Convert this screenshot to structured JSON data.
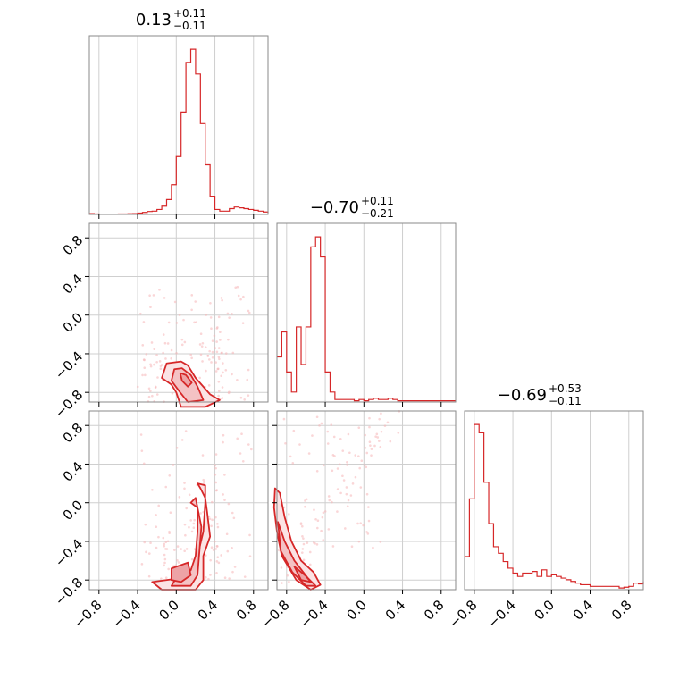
{
  "chart_data": {
    "type": "corner",
    "color": "#d62728",
    "fill_color": "#f4c2c4",
    "scatter_color": "#f5b5b7",
    "axis_range": [
      -0.9,
      0.95
    ],
    "ticks": [
      -0.8,
      -0.4,
      0.0,
      0.4,
      0.8
    ],
    "tick_labels": [
      "−0.8",
      "−0.4",
      "0.0",
      "0.4",
      "0.8"
    ],
    "grid": true,
    "parameters": [
      {
        "title_median": "0.13",
        "title_plus": "+0.11",
        "title_minus": "−0.11"
      },
      {
        "title_median": "−0.70",
        "title_plus": "+0.11",
        "title_minus": "−0.21"
      },
      {
        "title_median": "−0.69",
        "title_plus": "+0.53",
        "title_minus": "−0.11"
      }
    ],
    "histograms": [
      {
        "x": [
          -0.9,
          -0.85,
          -0.8,
          -0.75,
          -0.7,
          -0.65,
          -0.6,
          -0.55,
          -0.5,
          -0.45,
          -0.4,
          -0.35,
          -0.3,
          -0.25,
          -0.2,
          -0.15,
          -0.1,
          -0.05,
          0.0,
          0.05,
          0.1,
          0.15,
          0.2,
          0.25,
          0.3,
          0.35,
          0.4,
          0.45,
          0.5,
          0.55,
          0.6,
          0.65,
          0.7,
          0.75,
          0.8,
          0.85,
          0.9,
          0.95
        ],
        "y": [
          0.005,
          0.003,
          0.002,
          0.002,
          0.002,
          0.002,
          0.003,
          0.003,
          0.004,
          0.005,
          0.008,
          0.012,
          0.018,
          0.02,
          0.03,
          0.05,
          0.09,
          0.18,
          0.35,
          0.62,
          0.92,
          1.0,
          0.85,
          0.55,
          0.3,
          0.11,
          0.03,
          0.02,
          0.02,
          0.035,
          0.045,
          0.04,
          0.035,
          0.03,
          0.025,
          0.02,
          0.015,
          0.01
        ]
      },
      {
        "x": [
          -0.9,
          -0.85,
          -0.8,
          -0.75,
          -0.7,
          -0.65,
          -0.6,
          -0.55,
          -0.5,
          -0.45,
          -0.4,
          -0.35,
          -0.3,
          -0.25,
          -0.2,
          -0.15,
          -0.1,
          -0.05,
          0.0,
          0.05,
          0.1,
          0.15,
          0.2,
          0.25,
          0.3,
          0.35,
          0.4,
          0.45,
          0.5,
          0.55,
          0.6,
          0.65,
          0.7,
          0.75,
          0.8,
          0.85,
          0.9,
          0.95
        ],
        "y": [
          0.18,
          0.28,
          0.12,
          0.04,
          0.3,
          0.15,
          0.3,
          0.62,
          0.66,
          0.58,
          0.12,
          0.04,
          0.01,
          0.01,
          0.01,
          0.01,
          0.005,
          0.01,
          0.005,
          0.01,
          0.015,
          0.01,
          0.01,
          0.015,
          0.01,
          0.005,
          0.005,
          0.005,
          0.005,
          0.005,
          0.005,
          0.005,
          0.005,
          0.005,
          0.005,
          0.005,
          0.005,
          0.005
        ]
      },
      {
        "x": [
          -0.9,
          -0.85,
          -0.8,
          -0.75,
          -0.7,
          -0.65,
          -0.6,
          -0.55,
          -0.5,
          -0.45,
          -0.4,
          -0.35,
          -0.3,
          -0.25,
          -0.2,
          -0.15,
          -0.1,
          -0.05,
          0.0,
          0.05,
          0.1,
          0.15,
          0.2,
          0.25,
          0.3,
          0.35,
          0.4,
          0.45,
          0.5,
          0.55,
          0.6,
          0.65,
          0.7,
          0.75,
          0.8,
          0.85,
          0.9,
          0.95
        ],
        "y": [
          0.2,
          0.55,
          1.0,
          0.95,
          0.65,
          0.4,
          0.26,
          0.22,
          0.17,
          0.13,
          0.1,
          0.08,
          0.1,
          0.1,
          0.11,
          0.08,
          0.12,
          0.08,
          0.09,
          0.08,
          0.07,
          0.06,
          0.05,
          0.04,
          0.03,
          0.03,
          0.02,
          0.02,
          0.02,
          0.02,
          0.02,
          0.02,
          0.01,
          0.015,
          0.02,
          0.04,
          0.035,
          0.05
        ]
      }
    ],
    "contours": {
      "p1_p0": [
        {
          "level": "outer",
          "points": [
            [
              -0.1,
              -0.5
            ],
            [
              0.05,
              -0.48
            ],
            [
              0.12,
              -0.52
            ],
            [
              0.2,
              -0.65
            ],
            [
              0.35,
              -0.82
            ],
            [
              0.45,
              -0.88
            ],
            [
              0.3,
              -0.95
            ],
            [
              0.05,
              -0.95
            ],
            [
              0.0,
              -0.8
            ],
            [
              -0.05,
              -0.72
            ],
            [
              -0.15,
              -0.65
            ]
          ]
        },
        {
          "level": "middle",
          "points": [
            [
              -0.02,
              -0.56
            ],
            [
              0.06,
              -0.55
            ],
            [
              0.15,
              -0.62
            ],
            [
              0.22,
              -0.74
            ],
            [
              0.28,
              -0.88
            ],
            [
              0.12,
              -0.9
            ],
            [
              0.04,
              -0.8
            ],
            [
              -0.05,
              -0.68
            ]
          ]
        },
        {
          "level": "inner",
          "points": [
            [
              0.04,
              -0.6
            ],
            [
              0.1,
              -0.62
            ],
            [
              0.16,
              -0.7
            ],
            [
              0.12,
              -0.74
            ],
            [
              0.06,
              -0.68
            ]
          ]
        }
      ],
      "p2_p0": [
        {
          "level": "outer",
          "points": [
            [
              0.22,
              0.2
            ],
            [
              0.3,
              0.18
            ],
            [
              0.3,
              0.0
            ],
            [
              0.28,
              -0.3
            ],
            [
              0.22,
              -0.55
            ],
            [
              0.15,
              -0.7
            ],
            [
              0.05,
              -0.78
            ],
            [
              -0.25,
              -0.82
            ],
            [
              -0.15,
              -0.9
            ],
            [
              0.2,
              -0.9
            ],
            [
              0.28,
              -0.8
            ],
            [
              0.28,
              -0.55
            ],
            [
              0.35,
              -0.35
            ],
            [
              0.32,
              -0.1
            ],
            [
              0.3,
              0.05
            ],
            [
              0.25,
              0.15
            ]
          ]
        },
        {
          "level": "middle",
          "points": [
            [
              0.15,
              0.0
            ],
            [
              0.22,
              -0.05
            ],
            [
              0.22,
              -0.3
            ],
            [
              0.2,
              -0.55
            ],
            [
              0.15,
              -0.7
            ],
            [
              0.0,
              -0.78
            ],
            [
              -0.05,
              -0.86
            ],
            [
              0.15,
              -0.86
            ],
            [
              0.22,
              -0.75
            ],
            [
              0.24,
              -0.5
            ],
            [
              0.26,
              -0.25
            ],
            [
              0.2,
              0.05
            ]
          ]
        },
        {
          "level": "inner",
          "points": [
            [
              -0.05,
              -0.68
            ],
            [
              0.12,
              -0.62
            ],
            [
              0.15,
              -0.75
            ],
            [
              0.05,
              -0.82
            ],
            [
              -0.05,
              -0.8
            ]
          ]
        }
      ],
      "p2_p1": [
        {
          "level": "outer",
          "points": [
            [
              -0.92,
              0.15
            ],
            [
              -0.87,
              0.1
            ],
            [
              -0.82,
              -0.15
            ],
            [
              -0.75,
              -0.4
            ],
            [
              -0.65,
              -0.6
            ],
            [
              -0.52,
              -0.72
            ],
            [
              -0.45,
              -0.85
            ],
            [
              -0.55,
              -0.9
            ],
            [
              -0.7,
              -0.8
            ],
            [
              -0.85,
              -0.55
            ],
            [
              -0.9,
              -0.3
            ],
            [
              -0.93,
              -0.05
            ]
          ]
        },
        {
          "level": "middle",
          "points": [
            [
              -0.89,
              -0.2
            ],
            [
              -0.82,
              -0.4
            ],
            [
              -0.72,
              -0.6
            ],
            [
              -0.58,
              -0.78
            ],
            [
              -0.5,
              -0.86
            ],
            [
              -0.6,
              -0.86
            ],
            [
              -0.74,
              -0.72
            ],
            [
              -0.86,
              -0.5
            ]
          ]
        },
        {
          "level": "inner",
          "points": [
            [
              -0.72,
              -0.66
            ],
            [
              -0.6,
              -0.76
            ],
            [
              -0.55,
              -0.82
            ],
            [
              -0.65,
              -0.8
            ]
          ]
        }
      ]
    }
  }
}
